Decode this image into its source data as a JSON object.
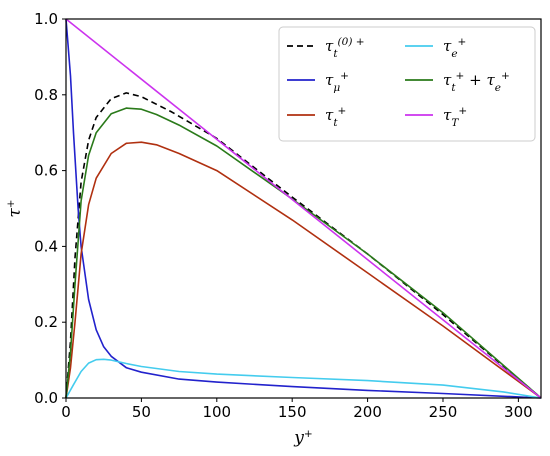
{
  "chart_data": {
    "type": "line",
    "title": "",
    "xlabel": {
      "base": "y",
      "sup": "+"
    },
    "ylabel": {
      "base": "τ",
      "sup": "+"
    },
    "xlim": [
      0,
      315
    ],
    "ylim": [
      0,
      1.0
    ],
    "xticks": [
      0,
      50,
      100,
      150,
      200,
      250,
      300
    ],
    "yticks": [
      0.0,
      0.2,
      0.4,
      0.6,
      0.8,
      1.0
    ],
    "xtick_labels": [
      "0",
      "50",
      "100",
      "150",
      "200",
      "250",
      "300"
    ],
    "ytick_labels": [
      "0.0",
      "0.2",
      "0.4",
      "0.6",
      "0.8",
      "1.0"
    ],
    "grid": false,
    "legend_position": "top-right",
    "legend_columns": 2,
    "series": [
      {
        "name": "τ_t^(0)+",
        "label_parts": [
          {
            "t": "τ"
          },
          {
            "t": "t",
            "cls": "sub"
          },
          {
            "t": "(0) +",
            "cls": "sup"
          }
        ],
        "color": "#000000",
        "dash": "6,4",
        "x": [
          0,
          3,
          6,
          10,
          15,
          20,
          30,
          40,
          50,
          70,
          100,
          150,
          200,
          250,
          315
        ],
        "y": [
          0,
          0.15,
          0.37,
          0.57,
          0.68,
          0.74,
          0.79,
          0.805,
          0.795,
          0.755,
          0.685,
          0.53,
          0.38,
          0.22,
          0
        ]
      },
      {
        "name": "τ_μ^+",
        "label_parts": [
          {
            "t": "τ"
          },
          {
            "t": "μ",
            "cls": "sub"
          },
          {
            "t": "+",
            "cls": "sup"
          }
        ],
        "color": "#2222cc",
        "dash": "",
        "x": [
          0,
          3,
          5,
          8,
          10,
          15,
          20,
          25,
          30,
          40,
          50,
          75,
          100,
          150,
          200,
          250,
          315
        ],
        "y": [
          1.0,
          0.85,
          0.7,
          0.5,
          0.4,
          0.26,
          0.18,
          0.135,
          0.11,
          0.08,
          0.068,
          0.05,
          0.042,
          0.03,
          0.02,
          0.012,
          0
        ]
      },
      {
        "name": "τ_t^+",
        "label_parts": [
          {
            "t": "τ"
          },
          {
            "t": "t",
            "cls": "sub"
          },
          {
            "t": "+",
            "cls": "sup"
          }
        ],
        "color": "#b03010",
        "dash": "",
        "x": [
          0,
          3,
          6,
          10,
          15,
          20,
          30,
          40,
          50,
          60,
          75,
          100,
          150,
          200,
          250,
          315
        ],
        "y": [
          0,
          0.08,
          0.2,
          0.38,
          0.51,
          0.58,
          0.645,
          0.672,
          0.675,
          0.668,
          0.645,
          0.6,
          0.47,
          0.33,
          0.19,
          0
        ]
      },
      {
        "name": "τ_e^+",
        "label_parts": [
          {
            "t": "τ"
          },
          {
            "t": "e",
            "cls": "sub"
          },
          {
            "t": "+",
            "cls": "sup"
          }
        ],
        "color": "#44ccee",
        "dash": "",
        "x": [
          0,
          5,
          10,
          15,
          20,
          25,
          30,
          40,
          50,
          75,
          100,
          150,
          200,
          250,
          290,
          315
        ],
        "y": [
          0,
          0.035,
          0.07,
          0.092,
          0.101,
          0.102,
          0.1,
          0.091,
          0.083,
          0.07,
          0.063,
          0.054,
          0.046,
          0.034,
          0.016,
          0
        ]
      },
      {
        "name": "τ_t^+ + τ_e^+",
        "label_parts": [
          {
            "t": "τ"
          },
          {
            "t": "t",
            "cls": "sub"
          },
          {
            "t": "+",
            "cls": "sup"
          },
          {
            "t": " + τ"
          },
          {
            "t": "e",
            "cls": "sub"
          },
          {
            "t": "+",
            "cls": "sup"
          }
        ],
        "color": "#2a7a1a",
        "dash": "",
        "x": [
          0,
          3,
          6,
          10,
          15,
          20,
          30,
          40,
          50,
          60,
          75,
          100,
          150,
          200,
          250,
          315
        ],
        "y": [
          0,
          0.12,
          0.3,
          0.52,
          0.64,
          0.7,
          0.75,
          0.765,
          0.762,
          0.748,
          0.72,
          0.665,
          0.525,
          0.38,
          0.225,
          0
        ]
      },
      {
        "name": "τ_T^+",
        "label_parts": [
          {
            "t": "τ"
          },
          {
            "t": "T",
            "cls": "sub"
          },
          {
            "t": "+",
            "cls": "sup"
          }
        ],
        "color": "#cc33ee",
        "dash": "",
        "x": [
          0,
          315
        ],
        "y": [
          1.0,
          0
        ]
      }
    ]
  }
}
